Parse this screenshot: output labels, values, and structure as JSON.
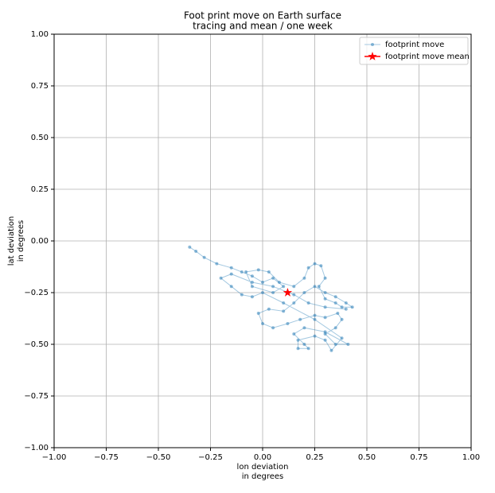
{
  "chart_data": {
    "type": "line",
    "title": "Foot print move on Earth surface",
    "subtitle": "tracing and mean / one week",
    "xlabel": [
      "lon deviation",
      "in degrees"
    ],
    "ylabel": [
      "lat deviation",
      "in degrees"
    ],
    "xlim": [
      -1,
      1
    ],
    "ylim": [
      -1,
      1
    ],
    "xticks": [
      {
        "value": -1,
        "label": "−1.00"
      },
      {
        "value": -0.75,
        "label": "−0.75"
      },
      {
        "value": -0.5,
        "label": "−0.50"
      },
      {
        "value": -0.25,
        "label": "−0.25"
      },
      {
        "value": 0,
        "label": "0.00"
      },
      {
        "value": 0.25,
        "label": "0.25"
      },
      {
        "value": 0.5,
        "label": "0.50"
      },
      {
        "value": 0.75,
        "label": "0.75"
      },
      {
        "value": 1,
        "label": "1.00"
      }
    ],
    "yticks": [
      {
        "value": -1,
        "label": "−1.00"
      },
      {
        "value": -0.75,
        "label": "−0.75"
      },
      {
        "value": -0.5,
        "label": "−0.50"
      },
      {
        "value": -0.25,
        "label": "−0.25"
      },
      {
        "value": 0,
        "label": "0.00"
      },
      {
        "value": 0.25,
        "label": "0.25"
      },
      {
        "value": 0.5,
        "label": "0.50"
      },
      {
        "value": 0.75,
        "label": "0.75"
      },
      {
        "value": 1,
        "label": "1.00"
      }
    ],
    "grid": true,
    "legend": "upper right",
    "series": [
      {
        "name": "footprint move",
        "color": "#1f77b4",
        "marker": "dot",
        "x": [
          -0.35,
          -0.32,
          -0.28,
          -0.22,
          -0.15,
          -0.1,
          -0.05,
          0.0,
          0.05,
          0.1,
          0.05,
          -0.05,
          -0.08,
          -0.02,
          0.03,
          0.08,
          0.15,
          0.2,
          0.22,
          0.25,
          0.28,
          0.3,
          0.27,
          0.3,
          0.35,
          0.38,
          0.43,
          0.4,
          0.35,
          0.3,
          0.25,
          0.2,
          0.15,
          0.1,
          0.03,
          -0.02,
          0.0,
          0.05,
          0.12,
          0.18,
          0.25,
          0.3,
          0.36,
          0.38,
          0.35,
          0.3,
          0.35,
          0.41,
          0.3,
          0.2,
          0.15,
          0.2,
          0.22,
          0.17,
          0.17,
          0.25,
          0.3,
          0.33,
          0.38,
          0.25,
          0.1,
          0.0,
          -0.05,
          -0.1,
          -0.15,
          -0.2,
          -0.15,
          -0.05,
          0.05,
          0.15,
          0.22,
          0.3,
          0.4
        ],
        "values": [
          -0.03,
          -0.05,
          -0.08,
          -0.11,
          -0.13,
          -0.15,
          -0.17,
          -0.2,
          -0.18,
          -0.22,
          -0.25,
          -0.22,
          -0.15,
          -0.14,
          -0.15,
          -0.2,
          -0.22,
          -0.18,
          -0.13,
          -0.11,
          -0.12,
          -0.18,
          -0.22,
          -0.28,
          -0.3,
          -0.32,
          -0.32,
          -0.3,
          -0.27,
          -0.25,
          -0.22,
          -0.25,
          -0.3,
          -0.34,
          -0.33,
          -0.35,
          -0.4,
          -0.42,
          -0.4,
          -0.38,
          -0.36,
          -0.37,
          -0.35,
          -0.38,
          -0.42,
          -0.45,
          -0.5,
          -0.5,
          -0.44,
          -0.42,
          -0.45,
          -0.5,
          -0.52,
          -0.52,
          -0.48,
          -0.46,
          -0.48,
          -0.53,
          -0.47,
          -0.38,
          -0.3,
          -0.25,
          -0.27,
          -0.26,
          -0.22,
          -0.18,
          -0.16,
          -0.2,
          -0.22,
          -0.26,
          -0.3,
          -0.32,
          -0.33
        ]
      },
      {
        "name": "footprint move mean",
        "color": "#ff0000",
        "marker": "star",
        "x": [
          0.12
        ],
        "values": [
          -0.25
        ]
      }
    ]
  }
}
